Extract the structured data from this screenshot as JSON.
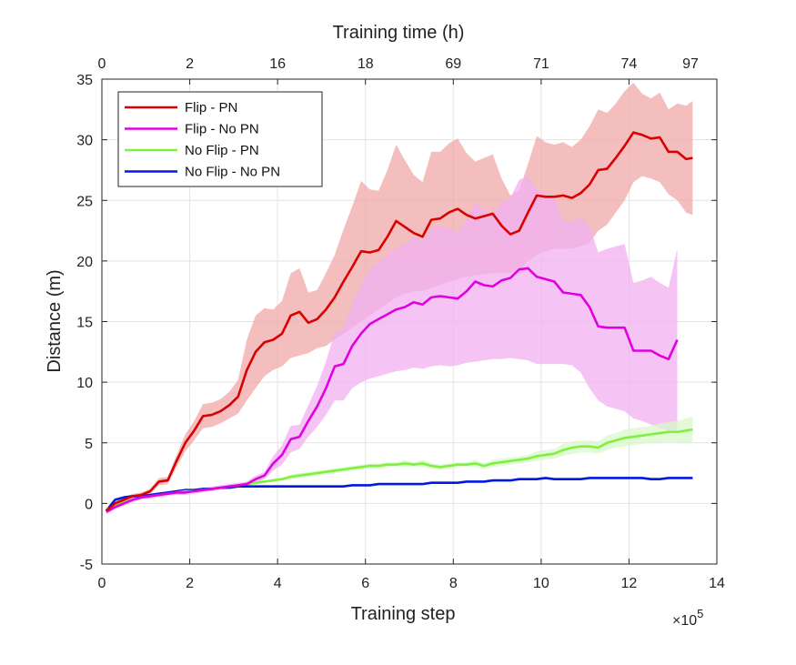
{
  "chart_data": {
    "type": "line",
    "xlabel": "Training step",
    "ylabel": "Distance (m)",
    "x_multiplier_label": "×10",
    "x_multiplier_exponent": "5",
    "top_axis_label": "Training time (h)",
    "xlim": [
      0,
      14
    ],
    "ylim": [
      -5,
      35
    ],
    "xticks": [
      0,
      2,
      4,
      6,
      8,
      10,
      12,
      14
    ],
    "yticks": [
      -5,
      0,
      5,
      10,
      15,
      20,
      25,
      30,
      35
    ],
    "top_ticks": [
      {
        "x": 0,
        "label": "0"
      },
      {
        "x": 2,
        "label": "2"
      },
      {
        "x": 4,
        "label": "16"
      },
      {
        "x": 6,
        "label": "18"
      },
      {
        "x": 8,
        "label": "69"
      },
      {
        "x": 10,
        "label": "71"
      },
      {
        "x": 12,
        "label": "74"
      },
      {
        "x": 13.4,
        "label": "97"
      }
    ],
    "grid": true,
    "legend_position": "top-left",
    "series": [
      {
        "name": "Flip - PN",
        "color": "#d90000",
        "band_color": "#f0a8a8",
        "x": [
          0.1,
          0.3,
          0.5,
          0.7,
          0.9,
          1.1,
          1.3,
          1.5,
          1.7,
          1.9,
          2.1,
          2.3,
          2.5,
          2.7,
          2.9,
          3.1,
          3.3,
          3.5,
          3.7,
          3.9,
          4.1,
          4.3,
          4.5,
          4.7,
          4.9,
          5.1,
          5.3,
          5.5,
          5.7,
          5.9,
          6.1,
          6.3,
          6.5,
          6.7,
          6.9,
          7.1,
          7.3,
          7.5,
          7.7,
          7.9,
          8.1,
          8.3,
          8.5,
          8.7,
          8.9,
          9.1,
          9.3,
          9.5,
          9.7,
          9.9,
          10.1,
          10.3,
          10.5,
          10.7,
          10.9,
          11.1,
          11.3,
          11.5,
          11.7,
          11.9,
          12.1,
          12.3,
          12.5,
          12.7,
          12.9,
          13.1,
          13.3,
          13.45
        ],
        "y": [
          -0.6,
          0.0,
          0.3,
          0.6,
          0.7,
          1.0,
          1.8,
          1.9,
          3.5,
          5.0,
          6.0,
          7.2,
          7.3,
          7.6,
          8.1,
          8.8,
          11.0,
          12.5,
          13.3,
          13.5,
          14.0,
          15.5,
          15.8,
          14.9,
          15.2,
          16.0,
          17.0,
          18.3,
          19.5,
          20.8,
          20.7,
          20.9,
          22.0,
          23.3,
          22.8,
          22.3,
          22.0,
          23.4,
          23.5,
          24.0,
          24.3,
          23.8,
          23.5,
          23.7,
          23.9,
          22.9,
          22.2,
          22.5,
          24.0,
          25.4,
          25.3,
          25.3,
          25.4,
          25.2,
          25.6,
          26.3,
          27.5,
          27.6,
          28.5,
          29.5,
          30.6,
          30.4,
          30.1,
          30.2,
          29.0,
          29.0,
          28.4,
          28.5
        ],
        "lower": [
          -0.8,
          -0.2,
          0.1,
          0.4,
          0.5,
          0.8,
          1.5,
          1.6,
          3.0,
          4.3,
          5.2,
          6.2,
          6.3,
          6.6,
          7.0,
          7.4,
          8.5,
          9.5,
          10.5,
          11.0,
          11.3,
          12.0,
          12.2,
          12.4,
          12.8,
          13.0,
          13.5,
          14.0,
          14.5,
          15.0,
          15.5,
          16.0,
          16.5,
          17.0,
          17.3,
          17.5,
          17.5,
          17.8,
          18.0,
          18.3,
          18.5,
          18.7,
          18.8,
          18.9,
          19.0,
          19.0,
          19.0,
          19.2,
          20.0,
          20.5,
          20.8,
          21.0,
          21.0,
          21.0,
          21.2,
          21.5,
          22.5,
          23.0,
          24.0,
          25.0,
          26.5,
          27.0,
          26.8,
          26.5,
          25.5,
          25.0,
          24.0,
          23.8
        ],
        "upper": [
          -0.4,
          0.2,
          0.5,
          0.8,
          0.9,
          1.2,
          2.1,
          2.2,
          4.0,
          5.7,
          6.8,
          8.2,
          8.3,
          8.6,
          9.2,
          10.2,
          13.5,
          15.5,
          16.1,
          16.0,
          16.7,
          19.0,
          19.4,
          17.4,
          17.6,
          19.0,
          20.5,
          22.6,
          24.5,
          26.6,
          25.9,
          25.8,
          27.5,
          29.6,
          28.3,
          27.1,
          26.5,
          29.0,
          29.0,
          29.7,
          30.1,
          28.9,
          28.2,
          28.5,
          28.8,
          26.8,
          25.4,
          25.8,
          28.0,
          30.3,
          29.8,
          29.6,
          29.8,
          29.4,
          30.0,
          31.1,
          32.5,
          32.2,
          33.0,
          34.0,
          34.7,
          33.8,
          33.4,
          33.9,
          32.5,
          33.0,
          32.8,
          33.2
        ]
      },
      {
        "name": "Flip - No PN",
        "color": "#e000e0",
        "band_color": "#f2b0f2",
        "x": [
          0.1,
          0.3,
          0.5,
          0.7,
          0.9,
          1.1,
          1.3,
          1.5,
          1.7,
          1.9,
          2.1,
          2.3,
          2.5,
          2.7,
          2.9,
          3.1,
          3.3,
          3.5,
          3.7,
          3.9,
          4.1,
          4.3,
          4.5,
          4.7,
          4.9,
          5.1,
          5.3,
          5.5,
          5.7,
          5.9,
          6.1,
          6.3,
          6.5,
          6.7,
          6.9,
          7.1,
          7.3,
          7.5,
          7.7,
          7.9,
          8.1,
          8.3,
          8.5,
          8.7,
          8.9,
          9.1,
          9.3,
          9.5,
          9.7,
          9.9,
          10.1,
          10.3,
          10.5,
          10.7,
          10.9,
          11.1,
          11.3,
          11.5,
          11.7,
          11.9,
          12.1,
          12.3,
          12.5,
          12.7,
          12.9,
          13.1
        ],
        "y": [
          -0.7,
          -0.3,
          0.0,
          0.3,
          0.5,
          0.6,
          0.7,
          0.8,
          0.9,
          0.9,
          1.0,
          1.1,
          1.2,
          1.3,
          1.4,
          1.5,
          1.6,
          2.0,
          2.3,
          3.3,
          4.0,
          5.3,
          5.5,
          6.8,
          8.0,
          9.5,
          11.3,
          11.5,
          13.0,
          14.0,
          14.8,
          15.2,
          15.6,
          16.0,
          16.2,
          16.6,
          16.4,
          17.0,
          17.1,
          17.0,
          16.9,
          17.5,
          18.3,
          18.0,
          17.9,
          18.4,
          18.6,
          19.3,
          19.4,
          18.7,
          18.5,
          18.3,
          17.4,
          17.3,
          17.2,
          16.2,
          14.6,
          14.5,
          14.5,
          14.5,
          12.6,
          12.6,
          12.6,
          12.2,
          11.9,
          13.5
        ],
        "lower": [
          -0.9,
          -0.5,
          -0.2,
          0.1,
          0.3,
          0.4,
          0.5,
          0.6,
          0.7,
          0.7,
          0.8,
          0.9,
          1.0,
          1.1,
          1.2,
          1.3,
          1.4,
          1.7,
          2.0,
          2.7,
          3.2,
          4.2,
          4.5,
          5.5,
          6.3,
          7.3,
          8.5,
          8.5,
          9.5,
          10.0,
          10.3,
          10.5,
          10.7,
          10.9,
          11.0,
          11.2,
          11.1,
          11.3,
          11.4,
          11.3,
          11.4,
          11.6,
          11.7,
          11.8,
          11.9,
          11.9,
          12.0,
          11.9,
          11.8,
          11.5,
          11.5,
          11.5,
          11.5,
          11.4,
          10.8,
          9.5,
          8.5,
          8.0,
          7.8,
          7.6,
          7.0,
          6.8,
          6.5,
          6.2,
          6.0,
          6.0
        ],
        "upper": [
          -0.5,
          -0.1,
          0.2,
          0.5,
          0.7,
          0.8,
          0.9,
          1.0,
          1.1,
          1.1,
          1.2,
          1.3,
          1.4,
          1.5,
          1.6,
          1.7,
          1.8,
          2.3,
          2.6,
          3.9,
          4.8,
          6.4,
          6.5,
          8.1,
          9.7,
          11.7,
          14.1,
          14.5,
          16.5,
          18.0,
          19.3,
          19.9,
          20.5,
          21.1,
          21.4,
          22.0,
          21.7,
          22.7,
          22.8,
          22.7,
          22.4,
          23.4,
          24.9,
          24.2,
          23.9,
          24.9,
          25.2,
          26.7,
          27.0,
          25.9,
          25.5,
          25.1,
          23.3,
          23.2,
          23.6,
          22.9,
          20.7,
          21.0,
          21.2,
          21.4,
          18.2,
          18.4,
          18.7,
          18.2,
          17.8,
          21.0
        ]
      },
      {
        "name": "No Flip - PN",
        "color": "#80f040",
        "band_color": "#d8f8c8",
        "x": [
          0.1,
          0.3,
          0.5,
          0.7,
          0.9,
          1.1,
          1.3,
          1.5,
          1.7,
          1.9,
          2.1,
          2.3,
          2.5,
          2.7,
          2.9,
          3.1,
          3.3,
          3.5,
          3.7,
          3.9,
          4.1,
          4.3,
          4.5,
          4.7,
          4.9,
          5.1,
          5.3,
          5.5,
          5.7,
          5.9,
          6.1,
          6.3,
          6.5,
          6.7,
          6.9,
          7.1,
          7.3,
          7.5,
          7.7,
          7.9,
          8.1,
          8.3,
          8.5,
          8.7,
          8.9,
          9.1,
          9.3,
          9.5,
          9.7,
          9.9,
          10.1,
          10.3,
          10.5,
          10.7,
          10.9,
          11.1,
          11.3,
          11.5,
          11.7,
          11.9,
          12.1,
          12.3,
          12.5,
          12.7,
          12.9,
          13.1,
          13.3,
          13.45
        ],
        "y": [
          -0.5,
          -0.2,
          0.1,
          0.3,
          0.5,
          0.6,
          0.7,
          0.8,
          0.9,
          1.0,
          1.0,
          1.1,
          1.2,
          1.3,
          1.4,
          1.5,
          1.6,
          1.7,
          1.8,
          1.9,
          2.0,
          2.2,
          2.3,
          2.4,
          2.5,
          2.6,
          2.7,
          2.8,
          2.9,
          3.0,
          3.1,
          3.1,
          3.2,
          3.2,
          3.3,
          3.2,
          3.3,
          3.1,
          3.0,
          3.1,
          3.2,
          3.2,
          3.3,
          3.1,
          3.3,
          3.4,
          3.5,
          3.6,
          3.7,
          3.9,
          4.0,
          4.1,
          4.4,
          4.6,
          4.7,
          4.7,
          4.6,
          5.0,
          5.2,
          5.4,
          5.5,
          5.6,
          5.7,
          5.8,
          5.9,
          5.9,
          6.0,
          6.1
        ],
        "lower": [
          -0.6,
          -0.3,
          0.0,
          0.2,
          0.4,
          0.5,
          0.6,
          0.7,
          0.8,
          0.9,
          0.9,
          1.0,
          1.1,
          1.2,
          1.3,
          1.4,
          1.5,
          1.6,
          1.7,
          1.8,
          1.9,
          2.0,
          2.1,
          2.2,
          2.3,
          2.4,
          2.5,
          2.6,
          2.7,
          2.8,
          2.9,
          2.9,
          3.0,
          3.0,
          3.0,
          3.0,
          3.0,
          2.9,
          2.8,
          2.9,
          3.0,
          3.0,
          3.0,
          2.9,
          3.0,
          3.1,
          3.2,
          3.3,
          3.4,
          3.5,
          3.6,
          3.7,
          3.9,
          4.1,
          4.2,
          4.2,
          4.1,
          4.4,
          4.6,
          4.7,
          4.8,
          4.9,
          5.0,
          5.0,
          5.1,
          5.0,
          5.0,
          5.0
        ],
        "upper": [
          -0.4,
          -0.1,
          0.2,
          0.4,
          0.6,
          0.7,
          0.8,
          0.9,
          1.0,
          1.1,
          1.1,
          1.2,
          1.3,
          1.4,
          1.5,
          1.6,
          1.7,
          1.8,
          1.9,
          2.0,
          2.1,
          2.4,
          2.5,
          2.6,
          2.7,
          2.8,
          2.9,
          3.0,
          3.1,
          3.2,
          3.3,
          3.3,
          3.4,
          3.4,
          3.6,
          3.4,
          3.6,
          3.3,
          3.2,
          3.3,
          3.4,
          3.4,
          3.6,
          3.3,
          3.6,
          3.7,
          3.8,
          3.9,
          4.0,
          4.3,
          4.4,
          4.5,
          4.9,
          5.1,
          5.2,
          5.2,
          5.1,
          5.6,
          5.8,
          6.1,
          6.2,
          6.3,
          6.4,
          6.6,
          6.7,
          6.8,
          7.0,
          7.2
        ]
      },
      {
        "name": "No Flip - No PN",
        "color": "#0018e0",
        "x": [
          0.1,
          0.3,
          0.5,
          0.7,
          0.9,
          1.1,
          1.3,
          1.5,
          1.7,
          1.9,
          2.1,
          2.3,
          2.5,
          2.7,
          2.9,
          3.1,
          3.3,
          3.5,
          3.7,
          3.9,
          4.1,
          4.3,
          4.5,
          4.7,
          4.9,
          5.1,
          5.3,
          5.5,
          5.7,
          5.9,
          6.1,
          6.3,
          6.5,
          6.7,
          6.9,
          7.1,
          7.3,
          7.5,
          7.7,
          7.9,
          8.1,
          8.3,
          8.5,
          8.7,
          8.9,
          9.1,
          9.3,
          9.5,
          9.7,
          9.9,
          10.1,
          10.3,
          10.5,
          10.7,
          10.9,
          11.1,
          11.3,
          11.5,
          11.7,
          11.9,
          12.1,
          12.3,
          12.5,
          12.7,
          12.9,
          13.1,
          13.3,
          13.45
        ],
        "y": [
          -0.6,
          0.3,
          0.5,
          0.6,
          0.6,
          0.7,
          0.8,
          0.9,
          1.0,
          1.1,
          1.1,
          1.2,
          1.2,
          1.3,
          1.3,
          1.4,
          1.4,
          1.4,
          1.4,
          1.4,
          1.4,
          1.4,
          1.4,
          1.4,
          1.4,
          1.4,
          1.4,
          1.4,
          1.5,
          1.5,
          1.5,
          1.6,
          1.6,
          1.6,
          1.6,
          1.6,
          1.6,
          1.7,
          1.7,
          1.7,
          1.7,
          1.8,
          1.8,
          1.8,
          1.9,
          1.9,
          1.9,
          2.0,
          2.0,
          2.0,
          2.1,
          2.0,
          2.0,
          2.0,
          2.0,
          2.1,
          2.1,
          2.1,
          2.1,
          2.1,
          2.1,
          2.1,
          2.0,
          2.0,
          2.1,
          2.1,
          2.1,
          2.1
        ]
      }
    ]
  }
}
